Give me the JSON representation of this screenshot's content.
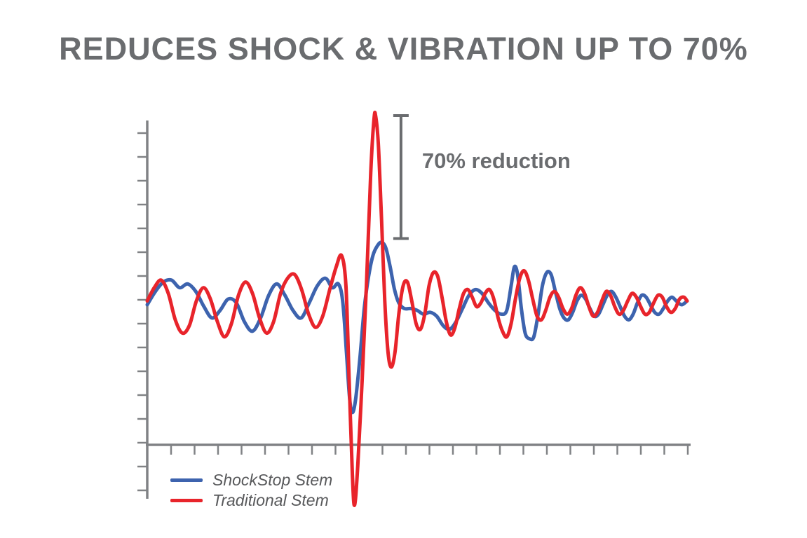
{
  "title": "REDUCES SHOCK & VIBRATION UP TO 70%",
  "title_color": "#6a6c6f",
  "legend_text_color": "#58595b",
  "chart_data": {
    "type": "line",
    "title": "REDUCES SHOCK & VIBRATION UP TO 70%",
    "xlabel": "",
    "ylabel": "",
    "x_range": [
      0,
      100
    ],
    "y_range": [
      -1.2,
      1.2
    ],
    "grid": false,
    "axes_shown": true,
    "tick_labels_shown": false,
    "axis_color": "#808285",
    "legend_position": "bottom-left",
    "annotation": {
      "label": "70% reduction",
      "t": 47,
      "from": 1.0,
      "to": 0.35,
      "color": "#6a6c6f"
    },
    "series": [
      {
        "name": "ShockStop Stem",
        "color": "#3d63ae",
        "points": [
          [
            0,
            0
          ],
          [
            1.5,
            0.07
          ],
          [
            3,
            0.12
          ],
          [
            4.5,
            0.13
          ],
          [
            6,
            0.09
          ],
          [
            7.5,
            0.11
          ],
          [
            9,
            0.07
          ],
          [
            10.5,
            -0.01
          ],
          [
            12,
            -0.07
          ],
          [
            13.5,
            -0.03
          ],
          [
            15,
            0.03
          ],
          [
            16.5,
            0.01
          ],
          [
            18,
            -0.09
          ],
          [
            19.5,
            -0.14
          ],
          [
            21,
            -0.07
          ],
          [
            22.5,
            0.05
          ],
          [
            24,
            0.11
          ],
          [
            25.5,
            0.05
          ],
          [
            27,
            -0.03
          ],
          [
            28.5,
            -0.07
          ],
          [
            30,
            0.01
          ],
          [
            31.5,
            0.1
          ],
          [
            33,
            0.14
          ],
          [
            34.3,
            0.09
          ],
          [
            35.4,
            0.11
          ],
          [
            36.2,
            0.02
          ],
          [
            36.9,
            -0.25
          ],
          [
            37.5,
            -0.5
          ],
          [
            38,
            -0.57
          ],
          [
            38.6,
            -0.5
          ],
          [
            39.4,
            -0.28
          ],
          [
            40.2,
            -0.02
          ],
          [
            41,
            0.15
          ],
          [
            41.8,
            0.26
          ],
          [
            42.6,
            0.31
          ],
          [
            43.4,
            0.33
          ],
          [
            44.2,
            0.3
          ],
          [
            45,
            0.2
          ],
          [
            45.8,
            0.08
          ],
          [
            46.6,
            0.01
          ],
          [
            47.6,
            -0.02
          ],
          [
            48.8,
            -0.02
          ],
          [
            50,
            -0.03
          ],
          [
            51.2,
            -0.05
          ],
          [
            52.4,
            -0.04
          ],
          [
            53.6,
            -0.06
          ],
          [
            54.8,
            -0.11
          ],
          [
            56,
            -0.13
          ],
          [
            57.2,
            -0.09
          ],
          [
            58.4,
            -0.02
          ],
          [
            59.6,
            0.05
          ],
          [
            60.8,
            0.08
          ],
          [
            62,
            0.06
          ],
          [
            63.2,
            0.01
          ],
          [
            64.4,
            -0.03
          ],
          [
            65.6,
            -0.05
          ],
          [
            66.6,
            -0.03
          ],
          [
            67.4,
            0.1
          ],
          [
            68,
            0.2
          ],
          [
            68.6,
            0.16
          ],
          [
            69.3,
            -0.02
          ],
          [
            70,
            -0.15
          ],
          [
            70.8,
            -0.18
          ],
          [
            71.6,
            -0.17
          ],
          [
            72.4,
            -0.05
          ],
          [
            73.2,
            0.1
          ],
          [
            74,
            0.17
          ],
          [
            74.8,
            0.16
          ],
          [
            75.6,
            0.07
          ],
          [
            76.4,
            -0.02
          ],
          [
            77.2,
            -0.07
          ],
          [
            78,
            -0.08
          ],
          [
            78.8,
            -0.04
          ],
          [
            79.6,
            0.02
          ],
          [
            80.4,
            0.05
          ],
          [
            81.2,
            0.03
          ],
          [
            82,
            -0.02
          ],
          [
            82.8,
            -0.06
          ],
          [
            83.6,
            -0.05
          ],
          [
            84.4,
            0
          ],
          [
            85.2,
            0.05
          ],
          [
            86,
            0.07
          ],
          [
            86.8,
            0.04
          ],
          [
            87.6,
            -0.01
          ],
          [
            88.4,
            -0.06
          ],
          [
            89.2,
            -0.08
          ],
          [
            90,
            -0.05
          ],
          [
            90.8,
            0.01
          ],
          [
            91.6,
            0.05
          ],
          [
            92.4,
            0.04
          ],
          [
            93.2,
            0
          ],
          [
            94,
            -0.04
          ],
          [
            94.8,
            -0.05
          ],
          [
            95.6,
            -0.02
          ],
          [
            96.4,
            0.02
          ],
          [
            97.2,
            0.04
          ],
          [
            98,
            0.02
          ],
          [
            99,
            0
          ],
          [
            100,
            0.02
          ]
        ]
      },
      {
        "name": "Traditional Stem",
        "color": "#e8242b",
        "points": [
          [
            0,
            0.02
          ],
          [
            1.3,
            0.09
          ],
          [
            2.6,
            0.13
          ],
          [
            3.9,
            0.06
          ],
          [
            5.2,
            -0.08
          ],
          [
            6.5,
            -0.15
          ],
          [
            7.8,
            -0.11
          ],
          [
            9.1,
            0.02
          ],
          [
            10.4,
            0.09
          ],
          [
            11.7,
            0.03
          ],
          [
            13,
            -0.09
          ],
          [
            14.3,
            -0.17
          ],
          [
            15.6,
            -0.1
          ],
          [
            16.9,
            0.05
          ],
          [
            18.2,
            0.12
          ],
          [
            19.5,
            0.06
          ],
          [
            20.8,
            -0.07
          ],
          [
            22.1,
            -0.15
          ],
          [
            23.4,
            -0.09
          ],
          [
            24.7,
            0.06
          ],
          [
            26,
            0.14
          ],
          [
            27.3,
            0.16
          ],
          [
            28.6,
            0.08
          ],
          [
            29.9,
            -0.05
          ],
          [
            31.2,
            -0.12
          ],
          [
            32.5,
            -0.06
          ],
          [
            33.8,
            0.08
          ],
          [
            35,
            0.2
          ],
          [
            36,
            0.26
          ],
          [
            36.8,
            0.1
          ],
          [
            37.4,
            -0.4
          ],
          [
            38,
            -0.9
          ],
          [
            38.4,
            -1.06
          ],
          [
            39,
            -0.85
          ],
          [
            39.8,
            -0.4
          ],
          [
            40.6,
            0.1
          ],
          [
            41.4,
            0.7
          ],
          [
            42,
            0.98
          ],
          [
            42.3,
            1.0
          ],
          [
            42.8,
            0.85
          ],
          [
            43.4,
            0.45
          ],
          [
            44,
            0.02
          ],
          [
            44.6,
            -0.25
          ],
          [
            45.2,
            -0.33
          ],
          [
            45.9,
            -0.25
          ],
          [
            46.6,
            -0.05
          ],
          [
            47.4,
            0.1
          ],
          [
            48.2,
            0.12
          ],
          [
            49,
            0.02
          ],
          [
            49.8,
            -0.1
          ],
          [
            50.6,
            -0.13
          ],
          [
            51.4,
            -0.05
          ],
          [
            52.2,
            0.1
          ],
          [
            53,
            0.17
          ],
          [
            53.8,
            0.15
          ],
          [
            54.6,
            0.04
          ],
          [
            55.4,
            -0.09
          ],
          [
            56.2,
            -0.16
          ],
          [
            57,
            -0.12
          ],
          [
            57.8,
            -0.02
          ],
          [
            58.6,
            0.06
          ],
          [
            59.4,
            0.08
          ],
          [
            60.2,
            0.04
          ],
          [
            61,
            -0.01
          ],
          [
            61.8,
            0.01
          ],
          [
            62.6,
            0.06
          ],
          [
            63.4,
            0.08
          ],
          [
            64.2,
            0.03
          ],
          [
            65,
            -0.07
          ],
          [
            65.8,
            -0.14
          ],
          [
            66.6,
            -0.17
          ],
          [
            67.4,
            -0.1
          ],
          [
            68.2,
            0.03
          ],
          [
            69,
            0.14
          ],
          [
            69.8,
            0.18
          ],
          [
            70.6,
            0.13
          ],
          [
            71.4,
            0.03
          ],
          [
            72.2,
            -0.06
          ],
          [
            73,
            -0.08
          ],
          [
            73.8,
            -0.03
          ],
          [
            74.6,
            0.04
          ],
          [
            75.4,
            0.07
          ],
          [
            76.2,
            0.04
          ],
          [
            77,
            -0.02
          ],
          [
            77.8,
            -0.05
          ],
          [
            78.6,
            -0.02
          ],
          [
            79.4,
            0.05
          ],
          [
            80.2,
            0.09
          ],
          [
            81,
            0.06
          ],
          [
            81.8,
            -0.01
          ],
          [
            82.6,
            -0.06
          ],
          [
            83.4,
            -0.04
          ],
          [
            84.2,
            0.02
          ],
          [
            85,
            0.07
          ],
          [
            85.8,
            0.05
          ],
          [
            86.6,
            -0.01
          ],
          [
            87.4,
            -0.05
          ],
          [
            88.2,
            -0.03
          ],
          [
            89,
            0.02
          ],
          [
            89.8,
            0.06
          ],
          [
            90.6,
            0.04
          ],
          [
            91.4,
            -0.01
          ],
          [
            92.2,
            -0.05
          ],
          [
            93,
            -0.04
          ],
          [
            93.8,
            0.01
          ],
          [
            94.6,
            0.05
          ],
          [
            95.4,
            0.04
          ],
          [
            96.2,
            -0.01
          ],
          [
            97,
            -0.04
          ],
          [
            97.8,
            -0.02
          ],
          [
            98.6,
            0.03
          ],
          [
            99.4,
            0.04
          ],
          [
            100,
            0.02
          ]
        ]
      }
    ]
  }
}
